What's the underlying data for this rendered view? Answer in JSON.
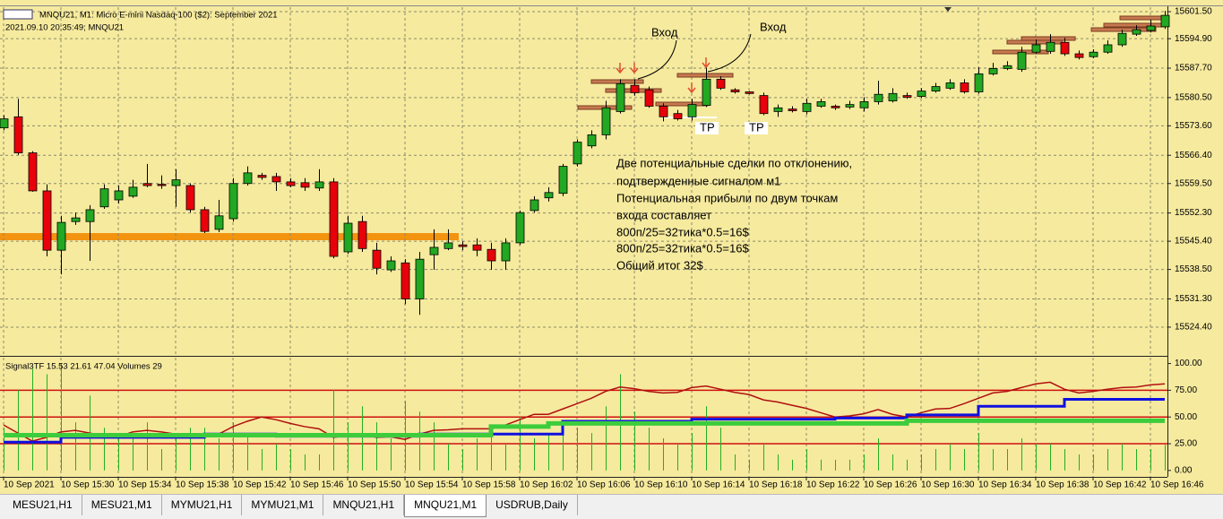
{
  "window": {
    "title": "MNQU21, M1:  Micro E-mini Nasdaq-100 ($2): September 2021",
    "info": "2021.09.10 20:35:49; MNQU21"
  },
  "chart_data": [
    {
      "type": "candlestick",
      "categories": [
        "10 Sep 2021",
        null,
        null,
        null,
        "10 Sep 15:30",
        null,
        null,
        null,
        "10 Sep 15:34",
        null,
        null,
        null,
        "10 Sep 15:38",
        null,
        null,
        null,
        "10 Sep 15:42",
        null,
        null,
        null,
        "10 Sep 15:46",
        null,
        null,
        null,
        "10 Sep 15:50",
        null,
        null,
        null,
        "10 Sep 15:54",
        null,
        null,
        null,
        "10 Sep 15:58",
        null,
        null,
        null,
        "10 Sep 16:02",
        null,
        null,
        null,
        "10 Sep 16:06",
        null,
        null,
        null,
        "10 Sep 16:10",
        null,
        null,
        null,
        "10 Sep 16:14",
        null,
        null,
        null,
        "10 Sep 16:18",
        null,
        null,
        null,
        "10 Sep 16:22",
        null,
        null,
        null,
        "10 Sep 16:26",
        null,
        null,
        null,
        "10 Sep 16:30",
        null,
        null,
        null,
        "10 Sep 16:34",
        null,
        null,
        null,
        "10 Sep 16:38",
        null,
        null,
        null,
        "10 Sep 16:42",
        null,
        null,
        null,
        "10 Sep 16:46",
        null
      ],
      "open": [
        15573.1,
        15575.8,
        15567.0,
        15557.7,
        15543.2,
        15550.2,
        15550.2,
        15553.8,
        15555.5,
        15556.4,
        15559.5,
        15559.3,
        15559.0,
        15559.0,
        15553.1,
        15548.3,
        15550.9,
        15559.5,
        15561.5,
        15561.2,
        15559.9,
        15559.7,
        15558.4,
        15559.9,
        15542.8,
        15550.2,
        15543.2,
        15538.4,
        15540.1,
        15531.3,
        15542.1,
        15543.6,
        15544.5,
        15544.5,
        15543.4,
        15540.6,
        15545.0,
        15552.9,
        15556.0,
        15557.1,
        15564.3,
        15568.7,
        15571.4,
        15577.1,
        15583.5,
        15582.4,
        15578.4,
        15576.6,
        15575.8,
        15578.6,
        15585.0,
        15582.4,
        15581.9,
        15581.0,
        15577.1,
        15577.7,
        15577.1,
        15578.4,
        15578.4,
        15578.2,
        15578.0,
        15579.5,
        15579.7,
        15581.0,
        15580.8,
        15582.1,
        15582.8,
        15584.1,
        15581.9,
        15586.3,
        15587.6,
        15587.4,
        15591.6,
        15591.8,
        15594.0,
        15591.2,
        15590.5,
        15591.6,
        15593.4,
        15596.0,
        15596.9,
        15597.8
      ],
      "high": [
        15576.2,
        15580.2,
        15567.4,
        15559.3,
        15551.6,
        15552.4,
        15554.2,
        15559.3,
        15559.0,
        15560.4,
        15564.3,
        15561.5,
        15563.0,
        15559.5,
        15553.8,
        15555.5,
        15560.8,
        15563.7,
        15562.1,
        15562.1,
        15560.8,
        15560.8,
        15563.0,
        15560.8,
        15551.6,
        15551.6,
        15545.0,
        15541.7,
        15541.0,
        15542.8,
        15548.3,
        15548.3,
        15545.4,
        15546.1,
        15545.0,
        15546.1,
        15552.9,
        15556.4,
        15558.6,
        15564.3,
        15570.3,
        15572.5,
        15579.7,
        15585.0,
        15585.0,
        15583.2,
        15579.1,
        15577.5,
        15580.2,
        15587.9,
        15585.7,
        15582.8,
        15582.1,
        15581.7,
        15578.8,
        15578.4,
        15580.2,
        15580.2,
        15578.8,
        15579.7,
        15580.6,
        15584.6,
        15582.8,
        15581.7,
        15582.8,
        15584.1,
        15585.0,
        15585.0,
        15587.9,
        15589.0,
        15589.4,
        15592.9,
        15594.7,
        15596.0,
        15595.1,
        15592.0,
        15592.3,
        15594.5,
        15597.1,
        15598.2,
        15599.5,
        15601.7
      ],
      "low": [
        15572.5,
        15566.5,
        15557.5,
        15541.7,
        15537.3,
        15549.4,
        15540.6,
        15553.3,
        15554.6,
        15556.0,
        15558.6,
        15558.2,
        15553.8,
        15552.4,
        15547.4,
        15547.6,
        15550.2,
        15559.0,
        15560.4,
        15557.7,
        15558.6,
        15557.7,
        15557.7,
        15541.2,
        15542.3,
        15542.8,
        15537.3,
        15537.9,
        15530.0,
        15527.4,
        15538.4,
        15543.2,
        15543.2,
        15541.7,
        15538.4,
        15538.4,
        15544.5,
        15552.4,
        15555.1,
        15556.4,
        15563.7,
        15568.1,
        15570.3,
        15576.6,
        15581.0,
        15578.0,
        15574.7,
        15574.9,
        15574.9,
        15578.2,
        15582.4,
        15581.5,
        15581.3,
        15576.2,
        15575.8,
        15576.9,
        15576.4,
        15578.0,
        15577.5,
        15577.7,
        15577.1,
        15578.8,
        15579.3,
        15580.2,
        15580.4,
        15581.7,
        15582.4,
        15581.5,
        15581.5,
        15585.9,
        15587.2,
        15586.8,
        15591.2,
        15591.2,
        15590.7,
        15589.8,
        15590.1,
        15591.2,
        15592.9,
        15595.6,
        15596.4,
        15597.3
      ],
      "close": [
        15575.3,
        15567.0,
        15557.7,
        15543.2,
        15550.0,
        15551.1,
        15553.1,
        15558.2,
        15557.7,
        15558.6,
        15559.0,
        15559.0,
        15560.4,
        15553.1,
        15547.8,
        15551.6,
        15559.5,
        15562.1,
        15561.0,
        15559.9,
        15559.0,
        15558.6,
        15559.9,
        15541.7,
        15549.8,
        15543.6,
        15538.8,
        15540.6,
        15531.3,
        15541.0,
        15543.9,
        15545.0,
        15544.1,
        15543.2,
        15540.6,
        15545.0,
        15552.4,
        15555.5,
        15557.3,
        15563.7,
        15569.6,
        15571.4,
        15578.0,
        15583.9,
        15581.7,
        15578.4,
        15575.8,
        15575.3,
        15578.8,
        15585.0,
        15582.8,
        15581.9,
        15581.5,
        15576.6,
        15578.0,
        15577.3,
        15579.1,
        15579.5,
        15578.0,
        15578.8,
        15579.5,
        15581.3,
        15581.5,
        15580.6,
        15582.1,
        15583.2,
        15584.1,
        15581.9,
        15586.3,
        15587.6,
        15588.3,
        15591.6,
        15593.4,
        15594.0,
        15591.2,
        15590.3,
        15591.6,
        15593.4,
        15596.2,
        15597.1,
        15598.0,
        15600.6
      ],
      "up_color": "#22a822",
      "down_color": "#e8000b",
      "ylim": [
        15517.6,
        15602.6
      ],
      "yticks": [
        {
          "value": 15601.5,
          "label": "15601.50"
        },
        {
          "value": 15594.9,
          "label": "15594.90"
        },
        {
          "value": 15587.7,
          "label": "15587.70"
        },
        {
          "value": 15580.5,
          "label": "15580.50"
        },
        {
          "value": 15573.6,
          "label": "15573.60"
        },
        {
          "value": 15566.4,
          "label": "15566.40"
        },
        {
          "value": 15559.5,
          "label": "15559.50"
        },
        {
          "value": 15552.3,
          "label": "15552.30"
        },
        {
          "value": 15545.4,
          "label": "15545.40"
        },
        {
          "value": 15538.5,
          "label": "15538.50"
        },
        {
          "value": 15531.3,
          "label": "15531.30"
        },
        {
          "value": 15524.4,
          "label": "15524.40"
        }
      ],
      "grid": true
    },
    {
      "type": "line",
      "title": "Signal3TF 15.53 21.61 47.04 Volumes 29",
      "series": [
        {
          "color": "#b01010",
          "width": 1.5,
          "step": false,
          "values": [
            42.5,
            35,
            27.5,
            31,
            36,
            37.5,
            35,
            32.5,
            31.5,
            36,
            37.5,
            36,
            34,
            32.5,
            31,
            34,
            41,
            46,
            50,
            47.5,
            44,
            41,
            39,
            31,
            32.5,
            34,
            31,
            31.5,
            29,
            34,
            37.5,
            38,
            39,
            39,
            39,
            42.5,
            47.5,
            52.5,
            52.5,
            57.5,
            62.5,
            67.5,
            74,
            78,
            76.5,
            74,
            72.5,
            73,
            77.5,
            79,
            76,
            73,
            71,
            66,
            64,
            61,
            58,
            54,
            50,
            51,
            53,
            57,
            52.5,
            50,
            54,
            57.5,
            58,
            62.5,
            67.5,
            72.5,
            74,
            77.5,
            81,
            82.5,
            76,
            72.5,
            74,
            76,
            77.5,
            78,
            80,
            81
          ]
        },
        {
          "color": "#1010e0",
          "width": 3,
          "step": true,
          "values": [
            26.5,
            26.5,
            26.5,
            26.5,
            31,
            31,
            31,
            31,
            31,
            31,
            31,
            31,
            31,
            31,
            34,
            34,
            34,
            34,
            34,
            32,
            32,
            32,
            32,
            32,
            32,
            32,
            32,
            32,
            32,
            34,
            34,
            34,
            34,
            34,
            34,
            34,
            34,
            34,
            34,
            46,
            46,
            46,
            46,
            46,
            46,
            46,
            46,
            46,
            48,
            48,
            48,
            48,
            48,
            48,
            48,
            48,
            48,
            48,
            49,
            49,
            49,
            49,
            49,
            52,
            52,
            52,
            52,
            52,
            60,
            60,
            60,
            60,
            60,
            60,
            66.5,
            66.5,
            66.5,
            66.5,
            66.5,
            66.5,
            66.5,
            66.5
          ]
        },
        {
          "color": "#3ccc3c",
          "width": 5,
          "step": true,
          "values": [
            33,
            33,
            33,
            33,
            33,
            33,
            33,
            33,
            33,
            33,
            33,
            33,
            33,
            33,
            33,
            33,
            33,
            33,
            33,
            33,
            33,
            33,
            33,
            33,
            33,
            33,
            33,
            33,
            33,
            33,
            33,
            33,
            33,
            33,
            41,
            41,
            41,
            41,
            44,
            44,
            44,
            44,
            44,
            44,
            44,
            44,
            44,
            44,
            44,
            44,
            44,
            44,
            44,
            44,
            44,
            44,
            44,
            44,
            44,
            44,
            44,
            44,
            44,
            46.5,
            46.5,
            46.5,
            46.5,
            46.5,
            46.5,
            46.5,
            46.5,
            46.5,
            46.5,
            46.5,
            46.5,
            46.5,
            46.5,
            46.5,
            46.5,
            46.5,
            46.5,
            46.5
          ]
        }
      ],
      "volumes": {
        "color": "#22b022",
        "values": [
          40,
          75,
          95,
          90,
          100,
          45,
          70,
          40,
          35,
          30,
          45,
          20,
          35,
          40,
          40,
          30,
          45,
          35,
          20,
          25,
          20,
          15,
          15,
          75,
          45,
          60,
          45,
          30,
          65,
          55,
          45,
          25,
          20,
          30,
          35,
          25,
          50,
          30,
          35,
          45,
          40,
          35,
          60,
          90,
          55,
          40,
          30,
          25,
          35,
          60,
          40,
          15,
          10,
          25,
          15,
          10,
          20,
          10,
          10,
          10,
          15,
          30,
          15,
          10,
          15,
          20,
          25,
          20,
          35,
          20,
          20,
          30,
          25,
          25,
          20,
          15,
          15,
          20,
          25,
          20,
          20,
          24
        ]
      },
      "levels": [
        75,
        50,
        25
      ],
      "level_color": "#d01010",
      "ylim": [
        -6,
        105.5
      ],
      "yticks": [
        {
          "value": 100,
          "label": "100.00"
        },
        {
          "value": 75,
          "label": "75.00"
        },
        {
          "value": 50,
          "label": "50.00"
        },
        {
          "value": 25,
          "label": "25.00"
        },
        {
          "value": 0,
          "label": "0.00"
        }
      ]
    }
  ],
  "annotation": {
    "entry": [
      "Вход",
      "Вход"
    ],
    "tp": [
      "TP",
      "TP"
    ],
    "note": [
      "Две потенциальные сделки по отклонению,",
      "подтвержденные сигналом м1",
      "Потенциальная прибыли по двум точкам",
      "входа составляет",
      "800п/25=32тика*0.5=16$",
      "800п/25=32тика*0.5=16$",
      "Общий итог 32$"
    ]
  },
  "tabs": [
    "MESU21,H1",
    "MESU21,M1",
    "MYMU21,H1",
    "MYMU21,M1",
    "MNQU21,H1",
    "MNQU21,M1",
    "USDRUB,Daily"
  ],
  "active_tab": 5
}
